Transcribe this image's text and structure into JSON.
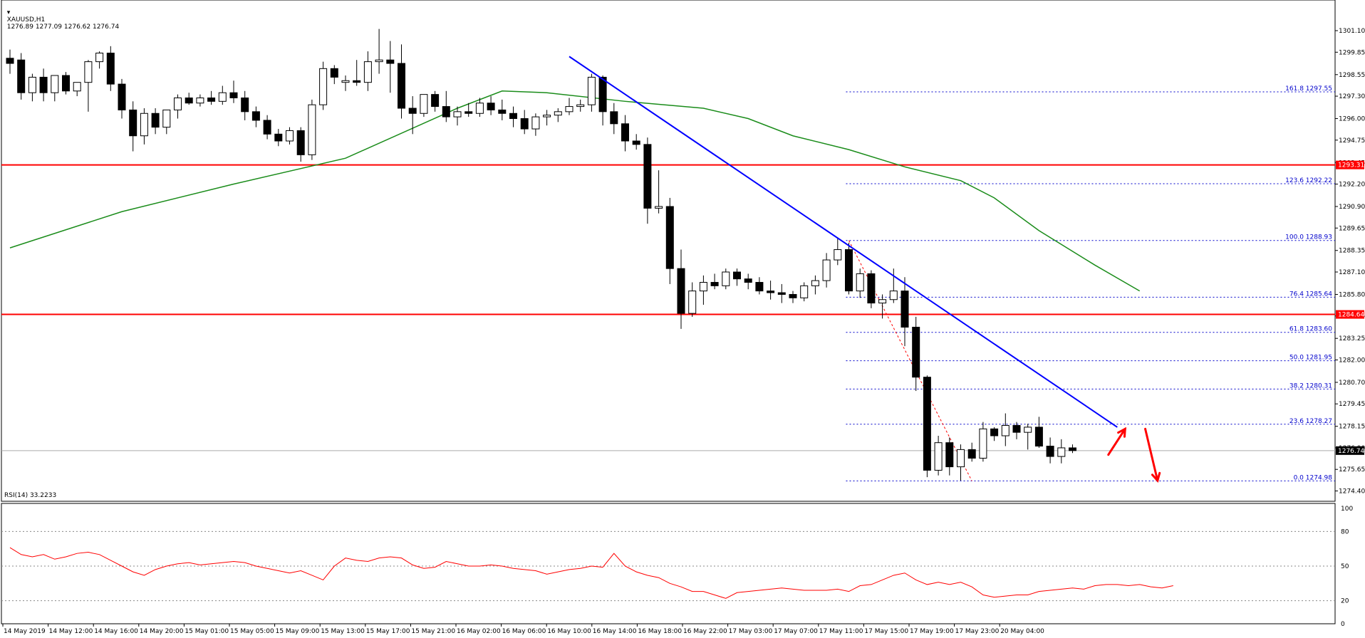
{
  "header": {
    "symbol": "XAUUSD,H1",
    "ohlc": "1276.89 1277.09 1276.62 1276.74"
  },
  "rsi_header": "RSI(14) 33.2233",
  "colors": {
    "candle": "#000000",
    "ma": "#1a8c1a",
    "trendline": "#0000ff",
    "support": "#ff0000",
    "fib": "#0000cc",
    "rsi": "#ff0000",
    "arrow": "#ff0000"
  },
  "chart_data": {
    "type": "candlestick",
    "price_axis": {
      "min": 1273.8,
      "max": 1302.3,
      "ticks": [
        "1301.10",
        "1299.85",
        "1298.55",
        "1297.30",
        "1296.00",
        "1294.75",
        "1293.45",
        "1292.20",
        "1290.90",
        "1289.65",
        "1288.35",
        "1287.10",
        "1285.80",
        "1284.55",
        "1283.25",
        "1282.00",
        "1280.70",
        "1279.45",
        "1278.15",
        "1276.90",
        "1275.65",
        "1274.40"
      ]
    },
    "time_axis": {
      "labels": [
        "14 May 2019",
        "14 May 12:00",
        "14 May 16:00",
        "14 May 20:00",
        "15 May 01:00",
        "15 May 05:00",
        "15 May 09:00",
        "15 May 13:00",
        "15 May 17:00",
        "15 May 21:00",
        "16 May 02:00",
        "16 May 06:00",
        "16 May 10:00",
        "16 May 14:00",
        "16 May 18:00",
        "16 May 22:00",
        "17 May 03:00",
        "17 May 07:00",
        "17 May 11:00",
        "17 May 15:00",
        "17 May 19:00",
        "17 May 23:00",
        "20 May 04:00"
      ]
    },
    "candles": [
      {
        "o": 1299.5,
        "h": 1300.0,
        "l": 1298.6,
        "c": 1299.2
      },
      {
        "o": 1299.4,
        "h": 1299.8,
        "l": 1297.1,
        "c": 1297.5
      },
      {
        "o": 1297.5,
        "h": 1298.6,
        "l": 1297.0,
        "c": 1298.4
      },
      {
        "o": 1298.4,
        "h": 1298.9,
        "l": 1297.0,
        "c": 1297.5
      },
      {
        "o": 1297.5,
        "h": 1298.5,
        "l": 1297.0,
        "c": 1298.5
      },
      {
        "o": 1298.5,
        "h": 1298.7,
        "l": 1297.4,
        "c": 1297.6
      },
      {
        "o": 1297.6,
        "h": 1298.1,
        "l": 1297.3,
        "c": 1298.1
      },
      {
        "o": 1298.1,
        "h": 1299.4,
        "l": 1296.4,
        "c": 1299.3
      },
      {
        "o": 1299.3,
        "h": 1299.9,
        "l": 1298.9,
        "c": 1299.8
      },
      {
        "o": 1299.8,
        "h": 1300.2,
        "l": 1297.6,
        "c": 1298.0
      },
      {
        "o": 1298.0,
        "h": 1298.3,
        "l": 1296.0,
        "c": 1296.5
      },
      {
        "o": 1296.5,
        "h": 1297.0,
        "l": 1294.1,
        "c": 1295.0
      },
      {
        "o": 1295.0,
        "h": 1296.6,
        "l": 1294.5,
        "c": 1296.3
      },
      {
        "o": 1296.3,
        "h": 1296.6,
        "l": 1295.1,
        "c": 1295.5
      },
      {
        "o": 1295.5,
        "h": 1296.5,
        "l": 1295.1,
        "c": 1296.5
      },
      {
        "o": 1296.5,
        "h": 1297.4,
        "l": 1296.0,
        "c": 1297.2
      },
      {
        "o": 1297.2,
        "h": 1297.5,
        "l": 1296.8,
        "c": 1296.9
      },
      {
        "o": 1296.9,
        "h": 1297.4,
        "l": 1296.7,
        "c": 1297.2
      },
      {
        "o": 1297.2,
        "h": 1297.6,
        "l": 1296.8,
        "c": 1297.0
      },
      {
        "o": 1297.0,
        "h": 1297.9,
        "l": 1296.8,
        "c": 1297.5
      },
      {
        "o": 1297.5,
        "h": 1298.2,
        "l": 1296.9,
        "c": 1297.2
      },
      {
        "o": 1297.2,
        "h": 1297.6,
        "l": 1295.9,
        "c": 1296.4
      },
      {
        "o": 1296.4,
        "h": 1296.7,
        "l": 1295.5,
        "c": 1295.9
      },
      {
        "o": 1295.9,
        "h": 1296.2,
        "l": 1294.8,
        "c": 1295.1
      },
      {
        "o": 1295.1,
        "h": 1295.4,
        "l": 1294.4,
        "c": 1294.7
      },
      {
        "o": 1294.7,
        "h": 1295.5,
        "l": 1294.5,
        "c": 1295.3
      },
      {
        "o": 1295.3,
        "h": 1295.5,
        "l": 1293.5,
        "c": 1293.9
      },
      {
        "o": 1293.9,
        "h": 1297.1,
        "l": 1293.6,
        "c": 1296.8
      },
      {
        "o": 1296.8,
        "h": 1299.3,
        "l": 1296.5,
        "c": 1298.9
      },
      {
        "o": 1298.9,
        "h": 1299.1,
        "l": 1298.0,
        "c": 1298.4
      },
      {
        "o": 1298.1,
        "h": 1298.5,
        "l": 1297.6,
        "c": 1298.2
      },
      {
        "o": 1298.2,
        "h": 1299.4,
        "l": 1297.9,
        "c": 1298.1
      },
      {
        "o": 1298.1,
        "h": 1299.9,
        "l": 1297.6,
        "c": 1299.3
      },
      {
        "o": 1299.3,
        "h": 1301.2,
        "l": 1298.6,
        "c": 1299.4
      },
      {
        "o": 1299.4,
        "h": 1300.5,
        "l": 1297.5,
        "c": 1299.2
      },
      {
        "o": 1299.2,
        "h": 1300.3,
        "l": 1296.0,
        "c": 1296.6
      },
      {
        "o": 1296.6,
        "h": 1297.3,
        "l": 1295.1,
        "c": 1296.3
      },
      {
        "o": 1296.3,
        "h": 1297.4,
        "l": 1296.1,
        "c": 1297.4
      },
      {
        "o": 1297.4,
        "h": 1297.6,
        "l": 1296.4,
        "c": 1296.7
      },
      {
        "o": 1296.7,
        "h": 1297.6,
        "l": 1295.8,
        "c": 1296.1
      },
      {
        "o": 1296.1,
        "h": 1296.7,
        "l": 1295.6,
        "c": 1296.4
      },
      {
        "o": 1296.4,
        "h": 1296.9,
        "l": 1296.1,
        "c": 1296.3
      },
      {
        "o": 1296.3,
        "h": 1297.2,
        "l": 1296.1,
        "c": 1296.9
      },
      {
        "o": 1296.9,
        "h": 1297.3,
        "l": 1296.2,
        "c": 1296.5
      },
      {
        "o": 1296.5,
        "h": 1297.1,
        "l": 1295.9,
        "c": 1296.3
      },
      {
        "o": 1296.3,
        "h": 1296.7,
        "l": 1295.5,
        "c": 1296.0
      },
      {
        "o": 1296.0,
        "h": 1296.5,
        "l": 1295.1,
        "c": 1295.4
      },
      {
        "o": 1295.4,
        "h": 1296.3,
        "l": 1295.0,
        "c": 1296.1
      },
      {
        "o": 1296.1,
        "h": 1296.5,
        "l": 1295.6,
        "c": 1296.2
      },
      {
        "o": 1296.2,
        "h": 1296.6,
        "l": 1295.8,
        "c": 1296.4
      },
      {
        "o": 1296.4,
        "h": 1297.2,
        "l": 1296.2,
        "c": 1296.7
      },
      {
        "o": 1296.7,
        "h": 1297.1,
        "l": 1296.4,
        "c": 1296.8
      },
      {
        "o": 1296.8,
        "h": 1298.6,
        "l": 1296.4,
        "c": 1298.4
      },
      {
        "o": 1298.4,
        "h": 1298.5,
        "l": 1295.6,
        "c": 1296.4
      },
      {
        "o": 1296.4,
        "h": 1296.9,
        "l": 1295.1,
        "c": 1295.7
      },
      {
        "o": 1295.7,
        "h": 1296.2,
        "l": 1294.1,
        "c": 1294.7
      },
      {
        "o": 1294.7,
        "h": 1295.1,
        "l": 1294.2,
        "c": 1294.5
      },
      {
        "o": 1294.5,
        "h": 1294.9,
        "l": 1289.9,
        "c": 1290.8
      },
      {
        "o": 1290.8,
        "h": 1293.0,
        "l": 1290.5,
        "c": 1290.9
      },
      {
        "o": 1290.9,
        "h": 1291.4,
        "l": 1286.4,
        "c": 1287.3
      },
      {
        "o": 1287.3,
        "h": 1288.4,
        "l": 1283.8,
        "c": 1284.7
      },
      {
        "o": 1284.7,
        "h": 1286.5,
        "l": 1284.5,
        "c": 1286.0
      },
      {
        "o": 1286.0,
        "h": 1286.9,
        "l": 1285.2,
        "c": 1286.5
      },
      {
        "o": 1286.5,
        "h": 1287.0,
        "l": 1286.1,
        "c": 1286.3
      },
      {
        "o": 1286.3,
        "h": 1287.3,
        "l": 1286.1,
        "c": 1287.1
      },
      {
        "o": 1287.1,
        "h": 1287.3,
        "l": 1286.3,
        "c": 1286.7
      },
      {
        "o": 1286.7,
        "h": 1287.0,
        "l": 1286.1,
        "c": 1286.5
      },
      {
        "o": 1286.5,
        "h": 1286.8,
        "l": 1285.8,
        "c": 1286.0
      },
      {
        "o": 1286.0,
        "h": 1286.6,
        "l": 1285.5,
        "c": 1285.9
      },
      {
        "o": 1285.9,
        "h": 1286.4,
        "l": 1285.3,
        "c": 1285.8
      },
      {
        "o": 1285.8,
        "h": 1286.0,
        "l": 1285.3,
        "c": 1285.6
      },
      {
        "o": 1285.6,
        "h": 1286.5,
        "l": 1285.4,
        "c": 1286.3
      },
      {
        "o": 1286.3,
        "h": 1286.9,
        "l": 1285.8,
        "c": 1286.6
      },
      {
        "o": 1286.6,
        "h": 1288.2,
        "l": 1286.2,
        "c": 1287.8
      },
      {
        "o": 1287.8,
        "h": 1289.1,
        "l": 1287.5,
        "c": 1288.4
      },
      {
        "o": 1288.4,
        "h": 1288.8,
        "l": 1285.8,
        "c": 1286.0
      },
      {
        "o": 1286.0,
        "h": 1287.3,
        "l": 1285.6,
        "c": 1287.0
      },
      {
        "o": 1287.0,
        "h": 1287.2,
        "l": 1285.0,
        "c": 1285.3
      },
      {
        "o": 1285.3,
        "h": 1285.8,
        "l": 1284.4,
        "c": 1285.5
      },
      {
        "o": 1285.5,
        "h": 1287.3,
        "l": 1285.3,
        "c": 1286.0
      },
      {
        "o": 1286.0,
        "h": 1286.8,
        "l": 1282.8,
        "c": 1283.9
      },
      {
        "o": 1283.9,
        "h": 1284.5,
        "l": 1280.2,
        "c": 1281.0
      },
      {
        "o": 1281.0,
        "h": 1281.1,
        "l": 1275.2,
        "c": 1275.6
      },
      {
        "o": 1275.6,
        "h": 1277.6,
        "l": 1275.3,
        "c": 1277.2
      },
      {
        "o": 1277.2,
        "h": 1277.5,
        "l": 1275.3,
        "c": 1275.8
      },
      {
        "o": 1275.8,
        "h": 1277.1,
        "l": 1275.0,
        "c": 1276.8
      },
      {
        "o": 1276.8,
        "h": 1277.2,
        "l": 1276.1,
        "c": 1276.3
      },
      {
        "o": 1276.3,
        "h": 1278.4,
        "l": 1276.1,
        "c": 1278.0
      },
      {
        "o": 1278.0,
        "h": 1278.1,
        "l": 1277.3,
        "c": 1277.6
      },
      {
        "o": 1277.6,
        "h": 1278.9,
        "l": 1277.0,
        "c": 1278.2
      },
      {
        "o": 1278.2,
        "h": 1278.4,
        "l": 1277.4,
        "c": 1277.8
      },
      {
        "o": 1277.8,
        "h": 1278.3,
        "l": 1276.8,
        "c": 1278.1
      },
      {
        "o": 1278.1,
        "h": 1278.7,
        "l": 1276.9,
        "c": 1277.0
      },
      {
        "o": 1277.0,
        "h": 1277.5,
        "l": 1276.0,
        "c": 1276.4
      },
      {
        "o": 1276.4,
        "h": 1277.4,
        "l": 1276.0,
        "c": 1276.9
      },
      {
        "o": 1276.9,
        "h": 1277.1,
        "l": 1276.6,
        "c": 1276.74
      }
    ],
    "moving_average": [
      {
        "i": 0,
        "v": 1288.5
      },
      {
        "i": 10,
        "v": 1290.6
      },
      {
        "i": 20,
        "v": 1292.2
      },
      {
        "i": 30,
        "v": 1293.7
      },
      {
        "i": 40,
        "v": 1296.6
      },
      {
        "i": 44,
        "v": 1297.6
      },
      {
        "i": 48,
        "v": 1297.5
      },
      {
        "i": 55,
        "v": 1297.0
      },
      {
        "i": 62,
        "v": 1296.6
      },
      {
        "i": 66,
        "v": 1296.0
      },
      {
        "i": 70,
        "v": 1295.0
      },
      {
        "i": 75,
        "v": 1294.2
      },
      {
        "i": 80,
        "v": 1293.2
      },
      {
        "i": 85,
        "v": 1292.4
      },
      {
        "i": 88,
        "v": 1291.4
      },
      {
        "i": 92,
        "v": 1289.5
      },
      {
        "i": 97,
        "v": 1287.5
      },
      {
        "i": 101,
        "v": 1286.0
      }
    ],
    "horizontal_lines": [
      {
        "label": "1293.31",
        "value": 1293.31
      },
      {
        "label": "1284.64",
        "value": 1284.64
      }
    ],
    "bid_line": {
      "label": "1276.74",
      "value": 1276.74
    },
    "trendline": {
      "from": {
        "i": 50,
        "v": 1299.6
      },
      "to": {
        "i": 99,
        "v": 1278.1
      }
    },
    "fibonacci": {
      "start_i": 75,
      "end_i": 104,
      "anchor_from": {
        "i": 75,
        "v": 1288.93
      },
      "anchor_to": {
        "i": 86,
        "v": 1274.98
      },
      "levels": [
        {
          "label": "161.8 1297.55",
          "value": 1297.55
        },
        {
          "label": "123.6 1292.22",
          "value": 1292.22
        },
        {
          "label": "100.0 1288.93",
          "value": 1288.93
        },
        {
          "label": "76.4 1285.64",
          "value": 1285.64
        },
        {
          "label": "61.8 1283.60",
          "value": 1283.6
        },
        {
          "label": "50.0 1281.95",
          "value": 1281.95
        },
        {
          "label": "38.2 1280.31",
          "value": 1280.31
        },
        {
          "label": "23.6 1278.27",
          "value": 1278.27
        },
        {
          "label": "0.0 1274.98",
          "value": 1274.98
        }
      ]
    },
    "arrows": [
      {
        "from": {
          "i": 98.2,
          "v": 1276.5
        },
        "to": {
          "i": 99.7,
          "v": 1278.0
        }
      },
      {
        "from": {
          "i": 101.5,
          "v": 1278.0
        },
        "to": {
          "i": 102.6,
          "v": 1275.0
        }
      }
    ],
    "rsi": {
      "min": 0,
      "max": 100,
      "ticks": [
        "100",
        "80",
        "50",
        "20",
        "0"
      ],
      "levels": [
        80,
        50,
        20
      ],
      "values": [
        66,
        60,
        58,
        60,
        56,
        58,
        61,
        62,
        60,
        55,
        50,
        45,
        42,
        47,
        50,
        52,
        53,
        51,
        52,
        53,
        54,
        53,
        50,
        48,
        46,
        44,
        46,
        42,
        38,
        50,
        57,
        55,
        54,
        57,
        58,
        57,
        51,
        48,
        49,
        54,
        52,
        50,
        50,
        51,
        50,
        48,
        47,
        46,
        43,
        45,
        47,
        48,
        50,
        49,
        61,
        50,
        45,
        42,
        40,
        35,
        32,
        28,
        28,
        25,
        22,
        27,
        28,
        29,
        30,
        31,
        30,
        29,
        29,
        29,
        30,
        28,
        33,
        34,
        38,
        42,
        44,
        38,
        34,
        36,
        34,
        36,
        32,
        25,
        23,
        24,
        25,
        25,
        28,
        29,
        30,
        31,
        30,
        33,
        34,
        34,
        33,
        34,
        32,
        31,
        33
      ]
    }
  }
}
